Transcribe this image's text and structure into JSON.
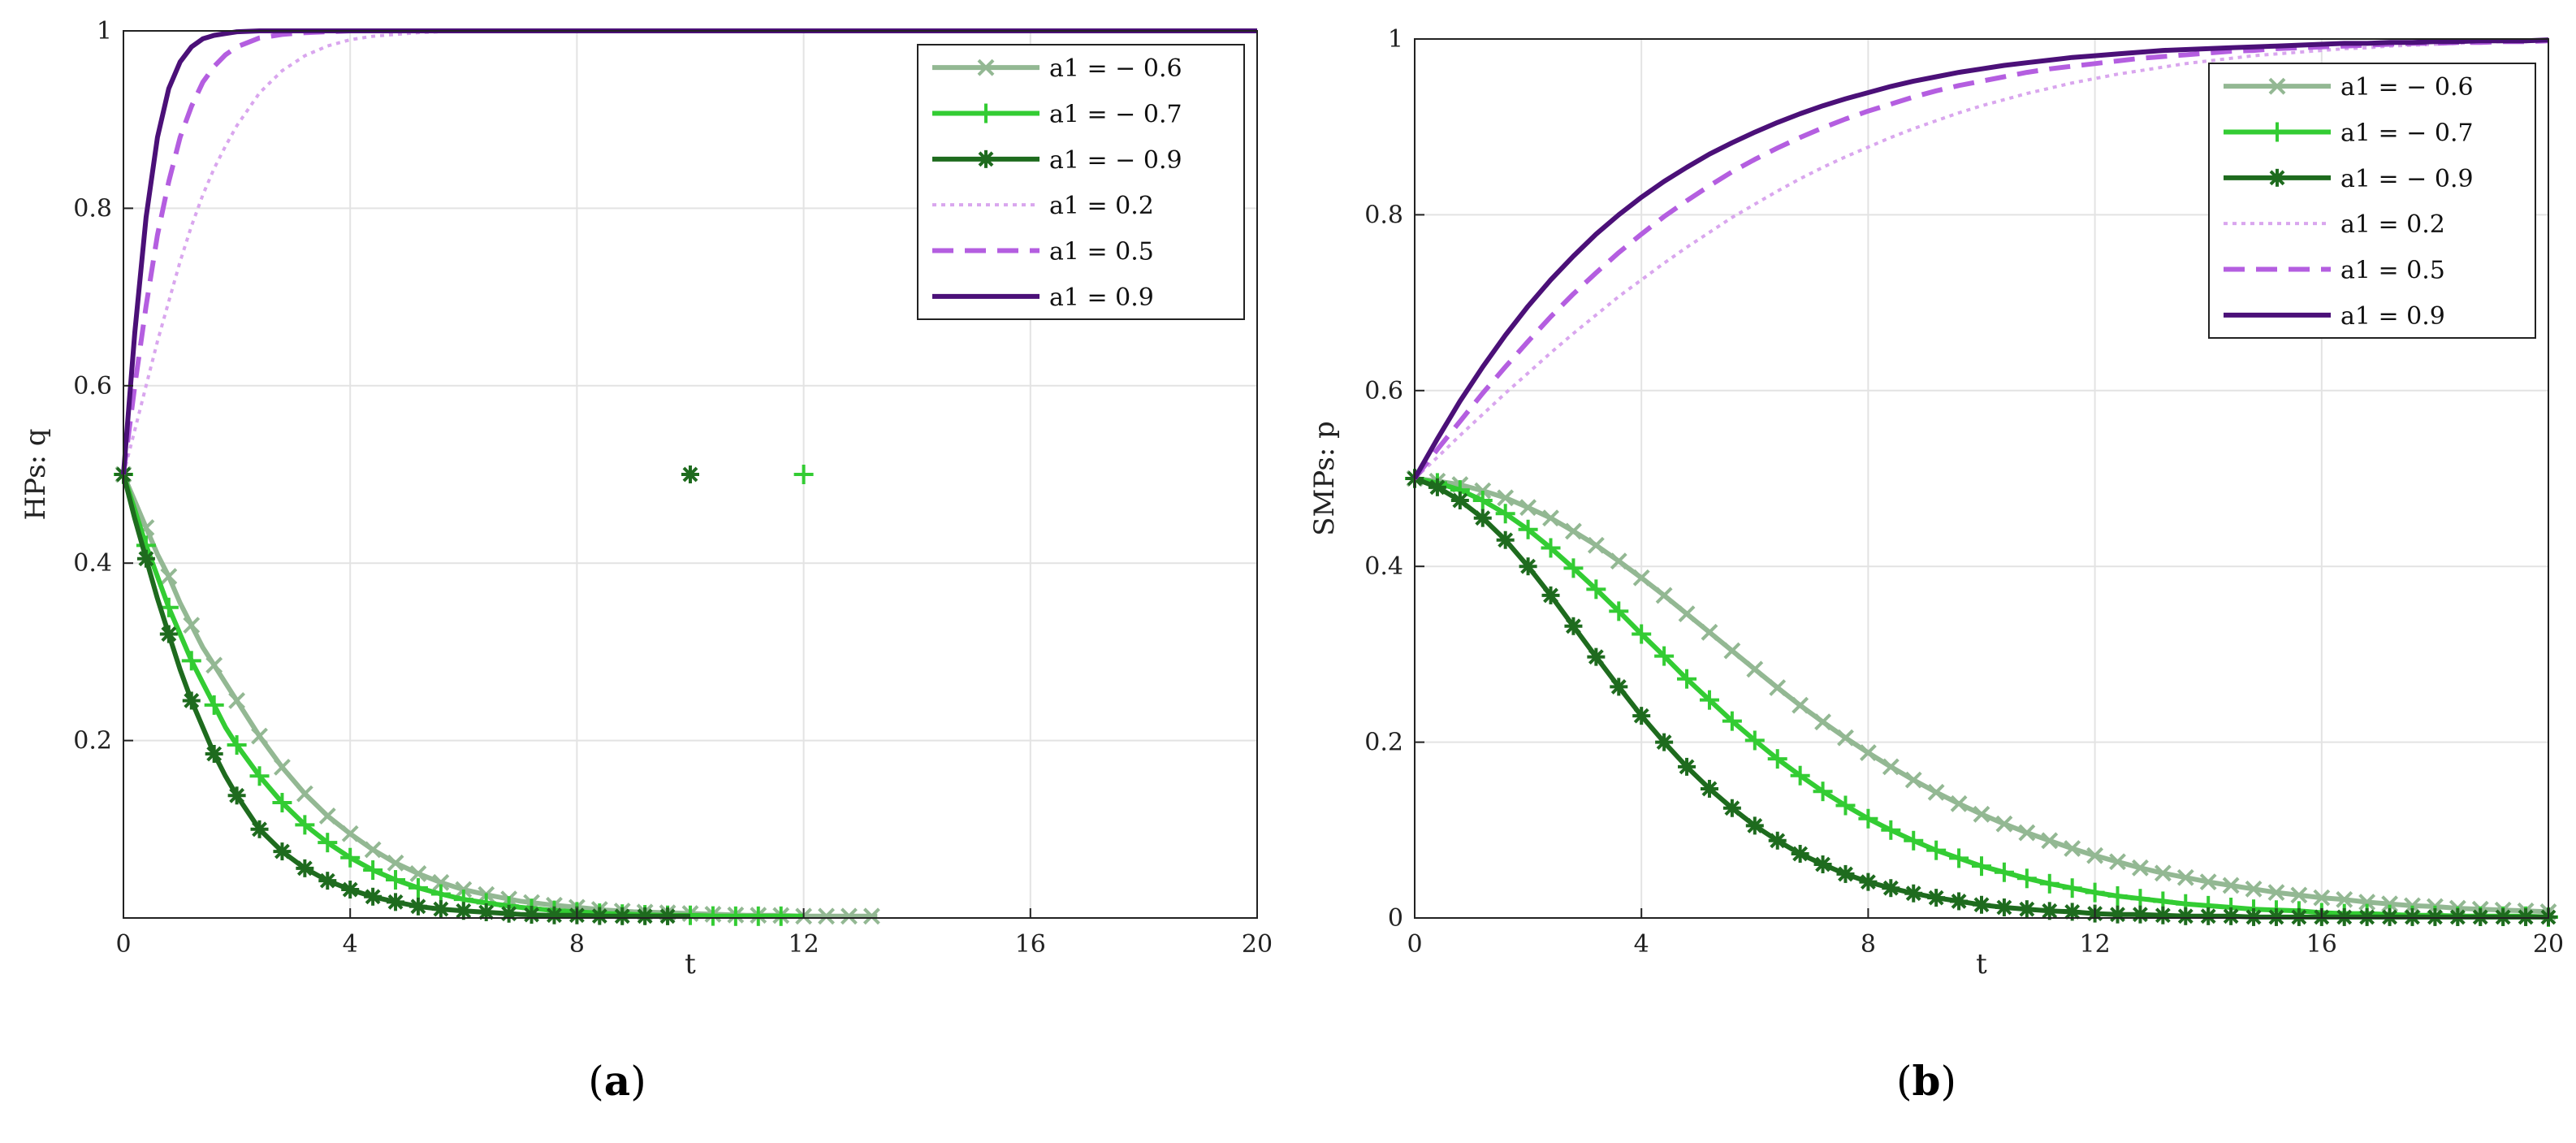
{
  "chart_data": [
    {
      "type": "line",
      "panel": "(a)",
      "panel_open": "(",
      "panel_letter": "a",
      "panel_close": ")",
      "xlabel": "t",
      "ylabel": "HPs: q",
      "xlim": [
        0,
        20
      ],
      "ylim": [
        0,
        1
      ],
      "xticks": [
        0,
        4,
        8,
        12,
        16,
        20
      ],
      "yticks": [
        0.2,
        0.4,
        0.6,
        0.8,
        1
      ],
      "grid": true,
      "legend_position": "top-right",
      "x": [
        0,
        0.2,
        0.4,
        0.6,
        0.8,
        1,
        1.2,
        1.4,
        1.6,
        1.8,
        2,
        2.4,
        2.8,
        3.2,
        3.6,
        4,
        4.4,
        4.8,
        5.2,
        5.6,
        6,
        6.5,
        7,
        7.5,
        8,
        8.5,
        9,
        9.5,
        10,
        10.5,
        11,
        11.5,
        12,
        12.5,
        13,
        13.3,
        14,
        16,
        18,
        20
      ],
      "series": [
        {
          "name": "a1 = − 0.6",
          "color": "#93b893",
          "marker": "x",
          "style": "solid",
          "values": [
            0.5,
            0.47,
            0.44,
            0.41,
            0.385,
            0.355,
            0.33,
            0.305,
            0.285,
            0.265,
            0.245,
            0.205,
            0.17,
            0.14,
            0.115,
            0.095,
            0.077,
            0.062,
            0.05,
            0.04,
            0.032,
            0.025,
            0.019,
            0.015,
            0.012,
            0.009,
            0.007,
            0.006,
            0.005,
            0.004,
            0.003,
            0.003,
            0.002,
            0.002,
            0.002,
            0.002,
            null,
            null,
            null,
            null
          ]
        },
        {
          "name": "a1 = − 0.7",
          "color": "#33cc33",
          "marker": "+",
          "style": "solid",
          "values": [
            0.5,
            0.46,
            0.42,
            0.385,
            0.35,
            0.32,
            0.29,
            0.265,
            0.24,
            0.215,
            0.195,
            0.16,
            0.13,
            0.105,
            0.085,
            0.068,
            0.054,
            0.043,
            0.034,
            0.027,
            0.021,
            0.016,
            0.012,
            0.009,
            0.007,
            0.005,
            0.004,
            0.003,
            0.003,
            0.002,
            0.002,
            0.002,
            0.002,
            null,
            null,
            null,
            null,
            null,
            null,
            null
          ]
        },
        {
          "name": "a1 = − 0.9",
          "color": "#1e6b1e",
          "marker": "*",
          "style": "solid",
          "values": [
            0.5,
            0.45,
            0.405,
            0.36,
            0.32,
            0.28,
            0.245,
            0.215,
            0.185,
            0.16,
            0.138,
            0.1,
            0.075,
            0.056,
            0.042,
            0.032,
            0.024,
            0.018,
            0.013,
            0.01,
            0.008,
            0.006,
            0.004,
            0.003,
            0.003,
            0.002,
            0.002,
            0.002,
            0.002,
            null,
            null,
            null,
            null,
            null,
            null,
            null,
            null,
            null,
            null,
            null
          ]
        },
        {
          "name": "a1 = 0.2",
          "color": "#d9a6ee",
          "marker": "",
          "style": "dotted",
          "values": [
            0.5,
            0.55,
            0.6,
            0.65,
            0.695,
            0.74,
            0.78,
            0.815,
            0.845,
            0.87,
            0.893,
            0.93,
            0.955,
            0.972,
            0.983,
            0.99,
            0.994,
            0.996,
            0.998,
            0.999,
            1,
            1,
            1,
            1,
            1,
            1,
            1,
            1,
            1,
            1,
            1,
            1,
            1,
            1,
            1,
            1,
            1,
            1,
            1,
            1
          ]
        },
        {
          "name": "a1 = 0.5",
          "color": "#b45ee0",
          "marker": "",
          "style": "dashed",
          "values": [
            0.5,
            0.6,
            0.69,
            0.77,
            0.83,
            0.88,
            0.915,
            0.942,
            0.96,
            0.973,
            0.982,
            0.992,
            0.996,
            0.998,
            0.999,
            1,
            1,
            1,
            1,
            1,
            1,
            1,
            1,
            1,
            1,
            1,
            1,
            1,
            1,
            1,
            1,
            1,
            1,
            1,
            1,
            1,
            1,
            1,
            1,
            1
          ]
        },
        {
          "name": "a1 = 0.9",
          "color": "#4b1078",
          "marker": "",
          "style": "solid",
          "values": [
            0.5,
            0.66,
            0.79,
            0.88,
            0.935,
            0.965,
            0.982,
            0.991,
            0.995,
            0.997,
            0.999,
            1,
            1,
            1,
            1,
            1,
            1,
            1,
            1,
            1,
            1,
            1,
            1,
            1,
            1,
            1,
            1,
            1,
            1,
            1,
            1,
            1,
            1,
            1,
            1,
            1,
            1,
            1,
            1,
            1
          ]
        }
      ]
    },
    {
      "type": "line",
      "panel": "(b)",
      "panel_open": "(",
      "panel_letter": "b",
      "panel_close": ")",
      "xlabel": "t",
      "ylabel": "SMPs: p",
      "xlim": [
        0,
        20
      ],
      "ylim": [
        0,
        1
      ],
      "xticks": [
        0,
        4,
        8,
        12,
        16,
        20
      ],
      "yticks": [
        0,
        0.2,
        0.4,
        0.6,
        0.8,
        1
      ],
      "grid": true,
      "legend_position": "top-right",
      "x": [
        0,
        0.4,
        0.8,
        1.2,
        1.6,
        2,
        2.4,
        2.8,
        3.2,
        3.6,
        4,
        4.4,
        4.8,
        5.2,
        5.6,
        6,
        6.4,
        6.8,
        7.2,
        7.6,
        8,
        8.4,
        8.8,
        9.2,
        9.6,
        10,
        10.4,
        10.8,
        11.2,
        11.6,
        12,
        12.4,
        12.8,
        13.2,
        13.6,
        14,
        14.4,
        14.8,
        15.2,
        15.6,
        16,
        16.4,
        16.8,
        17.2,
        17.6,
        18,
        18.4,
        18.8,
        19.2,
        19.6,
        20
      ],
      "series": [
        {
          "name": "a1 = − 0.6",
          "color": "#93b893",
          "marker": "x",
          "style": "solid",
          "values": [
            0.5,
            0.497,
            0.493,
            0.486,
            0.478,
            0.467,
            0.455,
            0.44,
            0.424,
            0.406,
            0.387,
            0.367,
            0.346,
            0.325,
            0.304,
            0.283,
            0.262,
            0.242,
            0.223,
            0.205,
            0.188,
            0.172,
            0.157,
            0.143,
            0.13,
            0.118,
            0.107,
            0.097,
            0.088,
            0.079,
            0.071,
            0.064,
            0.057,
            0.051,
            0.046,
            0.041,
            0.037,
            0.033,
            0.029,
            0.026,
            0.023,
            0.021,
            0.018,
            0.016,
            0.014,
            0.013,
            0.011,
            0.01,
            0.009,
            0.008,
            0.007
          ]
        },
        {
          "name": "a1 = − 0.7",
          "color": "#33cc33",
          "marker": "+",
          "style": "solid",
          "values": [
            0.5,
            0.495,
            0.487,
            0.475,
            0.46,
            0.442,
            0.421,
            0.398,
            0.374,
            0.349,
            0.323,
            0.298,
            0.272,
            0.248,
            0.224,
            0.202,
            0.181,
            0.162,
            0.144,
            0.128,
            0.113,
            0.1,
            0.088,
            0.077,
            0.068,
            0.059,
            0.052,
            0.045,
            0.039,
            0.034,
            0.029,
            0.025,
            0.022,
            0.019,
            0.016,
            0.014,
            0.012,
            0.01,
            0.009,
            0.008,
            0.006,
            0.005,
            0.005,
            0.004,
            0.003,
            0.003,
            0.002,
            0.002,
            0.002,
            0.002,
            0.001
          ]
        },
        {
          "name": "a1 = − 0.9",
          "color": "#1e6b1e",
          "marker": "*",
          "style": "solid",
          "values": [
            0.5,
            0.49,
            0.475,
            0.455,
            0.43,
            0.4,
            0.367,
            0.332,
            0.297,
            0.263,
            0.23,
            0.2,
            0.172,
            0.147,
            0.125,
            0.105,
            0.088,
            0.073,
            0.061,
            0.05,
            0.041,
            0.034,
            0.028,
            0.023,
            0.019,
            0.015,
            0.012,
            0.01,
            0.008,
            0.007,
            0.005,
            0.004,
            0.004,
            0.003,
            0.002,
            0.002,
            0.002,
            0.001,
            0.001,
            0.001,
            0.001,
            0.001,
            0.001,
            0.001,
            0.001,
            0.001,
            0.001,
            0.001,
            0.001,
            0.001,
            0.001
          ]
        },
        {
          "name": "a1 = 0.2",
          "color": "#d9a6ee",
          "marker": "",
          "style": "dotted",
          "values": [
            0.5,
            0.524,
            0.549,
            0.573,
            0.597,
            0.62,
            0.643,
            0.665,
            0.686,
            0.707,
            0.726,
            0.745,
            0.763,
            0.78,
            0.797,
            0.812,
            0.827,
            0.841,
            0.854,
            0.866,
            0.877,
            0.888,
            0.898,
            0.907,
            0.916,
            0.924,
            0.931,
            0.938,
            0.944,
            0.95,
            0.955,
            0.96,
            0.964,
            0.968,
            0.972,
            0.975,
            0.978,
            0.981,
            0.983,
            0.985,
            0.987,
            0.989,
            0.99,
            0.992,
            0.993,
            0.994,
            0.995,
            0.996,
            0.997,
            0.997,
            0.998
          ]
        },
        {
          "name": "a1 = 0.5",
          "color": "#b45ee0",
          "marker": "",
          "style": "dashed",
          "values": [
            0.5,
            0.533,
            0.565,
            0.597,
            0.627,
            0.656,
            0.684,
            0.71,
            0.734,
            0.757,
            0.778,
            0.798,
            0.816,
            0.833,
            0.849,
            0.863,
            0.876,
            0.888,
            0.899,
            0.909,
            0.918,
            0.926,
            0.934,
            0.941,
            0.947,
            0.952,
            0.957,
            0.962,
            0.966,
            0.969,
            0.972,
            0.975,
            0.978,
            0.98,
            0.982,
            0.984,
            0.986,
            0.987,
            0.989,
            0.99,
            0.991,
            0.992,
            0.993,
            0.994,
            0.995,
            0.995,
            0.996,
            0.996,
            0.997,
            0.997,
            0.998
          ]
        },
        {
          "name": "a1 = 0.9",
          "color": "#4b1078",
          "marker": "",
          "style": "solid",
          "values": [
            0.5,
            0.545,
            0.588,
            0.627,
            0.663,
            0.696,
            0.726,
            0.753,
            0.778,
            0.8,
            0.82,
            0.838,
            0.854,
            0.869,
            0.882,
            0.894,
            0.905,
            0.915,
            0.924,
            0.932,
            0.939,
            0.946,
            0.952,
            0.957,
            0.962,
            0.966,
            0.97,
            0.973,
            0.976,
            0.979,
            0.981,
            0.983,
            0.985,
            0.987,
            0.988,
            0.989,
            0.99,
            0.991,
            0.992,
            0.993,
            0.994,
            0.995,
            0.995,
            0.996,
            0.996,
            0.997,
            0.997,
            0.998,
            0.998,
            0.998,
            0.999
          ]
        }
      ]
    }
  ]
}
